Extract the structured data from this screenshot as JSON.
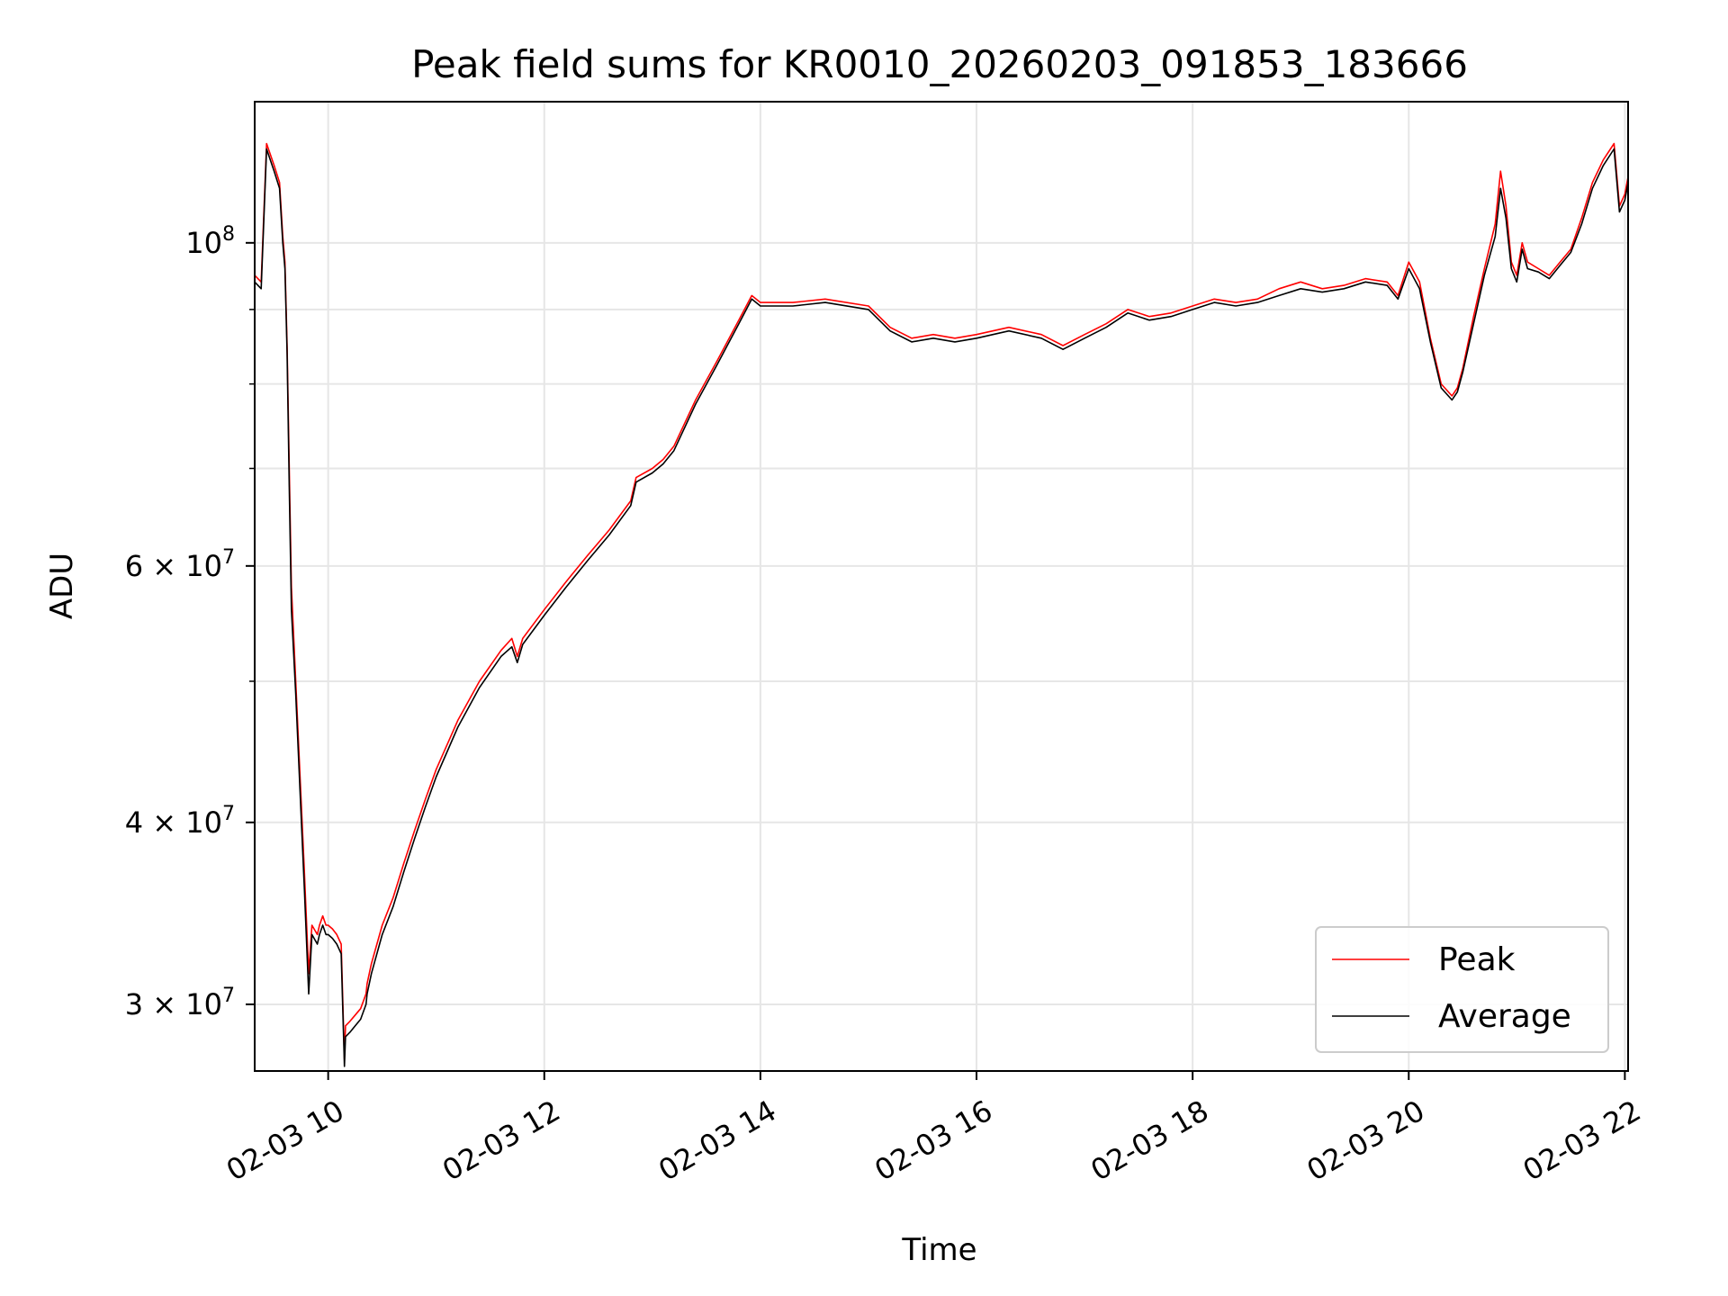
{
  "chart_data": {
    "type": "line",
    "title": "Peak field sums for KR0010_20260203_091853_183666",
    "xlabel": "Time",
    "ylabel": "ADU",
    "yscale": "log",
    "ylim": [
      27000000,
      125000000
    ],
    "xlim_hours": [
      9.32,
      22.03
    ],
    "grid": true,
    "legend_position": "lower-right",
    "x_tick_labels": [
      "02-03 10",
      "02-03 12",
      "02-03 14",
      "02-03 16",
      "02-03 18",
      "02-03 20",
      "02-03 22"
    ],
    "x_tick_hours": [
      10,
      12,
      14,
      16,
      18,
      20,
      22
    ],
    "y_major_ticks": [
      {
        "value": 30000000,
        "mantissa": "3",
        "base": "10",
        "exp": "7"
      },
      {
        "value": 40000000,
        "mantissa": "4",
        "base": "10",
        "exp": "7"
      },
      {
        "value": 60000000,
        "mantissa": "6",
        "base": "10",
        "exp": "7"
      },
      {
        "value": 100000000,
        "mantissa": "",
        "base": "10",
        "exp": "8"
      }
    ],
    "y_minor_ticks": [
      50000000,
      70000000,
      80000000,
      90000000
    ],
    "series": [
      {
        "name": "Peak",
        "color": "#ff0000",
        "x_hours": [
          9.32,
          9.38,
          9.43,
          9.5,
          9.55,
          9.58,
          9.6,
          9.62,
          9.64,
          9.66,
          9.7,
          9.74,
          9.78,
          9.82,
          9.85,
          9.9,
          9.92,
          9.95,
          9.98,
          10.0,
          10.04,
          10.08,
          10.12,
          10.15,
          10.16,
          10.2,
          10.25,
          10.3,
          10.35,
          10.36,
          10.4,
          10.5,
          10.6,
          10.7,
          10.8,
          10.9,
          11.0,
          11.2,
          11.4,
          11.6,
          11.7,
          11.75,
          11.8,
          12.0,
          12.2,
          12.4,
          12.6,
          12.8,
          12.85,
          13.0,
          13.1,
          13.2,
          13.4,
          13.6,
          13.8,
          13.92,
          14.0,
          14.3,
          14.6,
          15.0,
          15.2,
          15.4,
          15.6,
          15.8,
          16.0,
          16.3,
          16.6,
          16.8,
          17.0,
          17.2,
          17.4,
          17.6,
          17.8,
          18.0,
          18.2,
          18.4,
          18.6,
          18.8,
          19.0,
          19.2,
          19.4,
          19.6,
          19.8,
          19.9,
          20.0,
          20.1,
          20.2,
          20.3,
          20.4,
          20.45,
          20.5,
          20.6,
          20.7,
          20.8,
          20.85,
          20.9,
          20.95,
          21.0,
          21.05,
          21.1,
          21.2,
          21.3,
          21.4,
          21.5,
          21.6,
          21.7,
          21.8,
          21.9,
          21.95,
          22.0,
          22.03
        ],
        "values": [
          95000000,
          94000000,
          117000000,
          113000000,
          110000000,
          101000000,
          97000000,
          85000000,
          70000000,
          58000000,
          50000000,
          43000000,
          37000000,
          31500000,
          34000000,
          33500000,
          34000000,
          34500000,
          34000000,
          34000000,
          33800000,
          33500000,
          33000000,
          27500000,
          29000000,
          29200000,
          29500000,
          29800000,
          30500000,
          31000000,
          32000000,
          34000000,
          35500000,
          37500000,
          39500000,
          41500000,
          43500000,
          47000000,
          50000000,
          52500000,
          53500000,
          52000000,
          53500000,
          56000000,
          58500000,
          61000000,
          63500000,
          66500000,
          69000000,
          70000000,
          71000000,
          72500000,
          78000000,
          83000000,
          88500000,
          92000000,
          91000000,
          91000000,
          91500000,
          90500000,
          87500000,
          86000000,
          86500000,
          86000000,
          86500000,
          87500000,
          86500000,
          85000000,
          86500000,
          88000000,
          90000000,
          89000000,
          89500000,
          90500000,
          91500000,
          91000000,
          91500000,
          93000000,
          94000000,
          93000000,
          93500000,
          94500000,
          94000000,
          92000000,
          97000000,
          94000000,
          86000000,
          80000000,
          78500000,
          79500000,
          82000000,
          89000000,
          96000000,
          103000000,
          112000000,
          106000000,
          97000000,
          95000000,
          100000000,
          97000000,
          96000000,
          95000000,
          97000000,
          99000000,
          104000000,
          110000000,
          114000000,
          117000000,
          106000000,
          108000000,
          111000000
        ]
      },
      {
        "name": "Average",
        "color": "#000000",
        "x_hours": [
          9.32,
          9.38,
          9.43,
          9.5,
          9.55,
          9.58,
          9.6,
          9.62,
          9.64,
          9.66,
          9.7,
          9.74,
          9.78,
          9.82,
          9.85,
          9.9,
          9.92,
          9.95,
          9.98,
          10.0,
          10.04,
          10.08,
          10.12,
          10.15,
          10.16,
          10.2,
          10.25,
          10.3,
          10.35,
          10.36,
          10.4,
          10.5,
          10.6,
          10.7,
          10.8,
          10.9,
          11.0,
          11.2,
          11.4,
          11.6,
          11.7,
          11.75,
          11.8,
          12.0,
          12.2,
          12.4,
          12.6,
          12.8,
          12.85,
          13.0,
          13.1,
          13.2,
          13.4,
          13.6,
          13.8,
          13.92,
          14.0,
          14.3,
          14.6,
          15.0,
          15.2,
          15.4,
          15.6,
          15.8,
          16.0,
          16.3,
          16.6,
          16.8,
          17.0,
          17.2,
          17.4,
          17.6,
          17.8,
          18.0,
          18.2,
          18.4,
          18.6,
          18.8,
          19.0,
          19.2,
          19.4,
          19.6,
          19.8,
          19.9,
          20.0,
          20.1,
          20.2,
          20.3,
          20.4,
          20.45,
          20.5,
          20.6,
          20.7,
          20.8,
          20.85,
          20.9,
          20.95,
          21.0,
          21.05,
          21.1,
          21.2,
          21.3,
          21.4,
          21.5,
          21.6,
          21.7,
          21.8,
          21.9,
          21.95,
          22.0,
          22.03
        ],
        "values": [
          94000000,
          93000000,
          116000000,
          112000000,
          109000000,
          100000000,
          96000000,
          84000000,
          68000000,
          56000000,
          49000000,
          42000000,
          36000000,
          30500000,
          33500000,
          33000000,
          33500000,
          34000000,
          33500000,
          33500000,
          33300000,
          33000000,
          32500000,
          27200000,
          28500000,
          28700000,
          29000000,
          29300000,
          30000000,
          30500000,
          31500000,
          33500000,
          35000000,
          37000000,
          39000000,
          41000000,
          43000000,
          46500000,
          49500000,
          52000000,
          52800000,
          51500000,
          53000000,
          55500000,
          58000000,
          60500000,
          63000000,
          66000000,
          68500000,
          69500000,
          70500000,
          72000000,
          77500000,
          82500000,
          88000000,
          91500000,
          90500000,
          90500000,
          91000000,
          90000000,
          87000000,
          85500000,
          86000000,
          85500000,
          86000000,
          87000000,
          86000000,
          84500000,
          86000000,
          87500000,
          89500000,
          88500000,
          89000000,
          90000000,
          91000000,
          90500000,
          91000000,
          92000000,
          93000000,
          92500000,
          93000000,
          94000000,
          93500000,
          91500000,
          96000000,
          93000000,
          85500000,
          79500000,
          78000000,
          79000000,
          81500000,
          88000000,
          95000000,
          101000000,
          109000000,
          104000000,
          96000000,
          94000000,
          99000000,
          96000000,
          95500000,
          94500000,
          96500000,
          98500000,
          103000000,
          109000000,
          113000000,
          116000000,
          105000000,
          107000000,
          110000000
        ]
      }
    ]
  }
}
